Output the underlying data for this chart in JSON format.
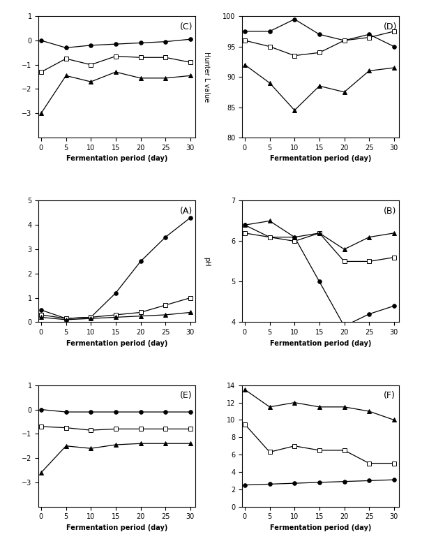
{
  "x": [
    0,
    5,
    10,
    15,
    20,
    25,
    30
  ],
  "panel_C": {
    "label": "(C)",
    "ylabel_right": "Hunter L value",
    "ylim": [
      -4,
      1
    ],
    "yticks": [
      -3,
      -2,
      -1,
      0,
      1
    ],
    "control": [
      0.0,
      -0.3,
      -0.2,
      -0.15,
      -0.1,
      -0.05,
      0.05
    ],
    "gt075": [
      -1.3,
      -0.75,
      -1.0,
      -0.65,
      -0.7,
      -0.7,
      -0.9
    ],
    "gt150": [
      -3.0,
      -1.45,
      -1.7,
      -1.3,
      -1.55,
      -1.55,
      -1.45
    ]
  },
  "panel_D": {
    "label": "(D)",
    "ylabel_right": "",
    "ylim": [
      80,
      100
    ],
    "yticks": [
      80,
      85,
      90,
      95,
      100
    ],
    "control": [
      97.5,
      97.5,
      99.5,
      97.0,
      96.0,
      97.0,
      95.0
    ],
    "gt075": [
      96.0,
      95.0,
      93.5,
      94.0,
      96.0,
      96.5,
      97.5
    ],
    "gt150": [
      92.0,
      89.0,
      84.5,
      88.5,
      87.5,
      91.0,
      91.5
    ]
  },
  "panel_A": {
    "label": "(A)",
    "ylabel_right": "pH",
    "ylim": [
      0,
      5
    ],
    "yticks": [
      0,
      1,
      2,
      3,
      4,
      5
    ],
    "control": [
      0.5,
      0.15,
      0.2,
      1.2,
      2.5,
      3.5,
      4.3
    ],
    "gt075": [
      0.3,
      0.15,
      0.2,
      0.3,
      0.4,
      0.7,
      1.0
    ],
    "gt150": [
      0.2,
      0.1,
      0.15,
      0.2,
      0.25,
      0.3,
      0.4
    ]
  },
  "panel_B": {
    "label": "(B)",
    "ylabel_right": "",
    "ylim": [
      4,
      7
    ],
    "yticks": [
      4,
      5,
      6,
      7
    ],
    "control": [
      6.4,
      6.1,
      6.1,
      5.0,
      3.9,
      4.2,
      4.4
    ],
    "gt075": [
      6.2,
      6.1,
      6.0,
      6.2,
      5.5,
      5.5,
      5.6
    ],
    "gt150": [
      6.4,
      6.5,
      6.1,
      6.2,
      5.8,
      6.1,
      6.2
    ]
  },
  "panel_E": {
    "label": "(E)",
    "ylabel_right": "",
    "ylim": [
      -4,
      1
    ],
    "yticks": [
      -3,
      -2,
      -1,
      0,
      1
    ],
    "control": [
      0.0,
      -0.1,
      -0.1,
      -0.1,
      -0.1,
      -0.1,
      -0.1
    ],
    "gt075": [
      -0.7,
      -0.75,
      -0.85,
      -0.8,
      -0.8,
      -0.8,
      -0.8
    ],
    "gt150": [
      -2.6,
      -1.5,
      -1.6,
      -1.45,
      -1.4,
      -1.4,
      -1.4
    ]
  },
  "panel_F": {
    "label": "(F)",
    "ylabel_right": "",
    "ylim": [
      0,
      14
    ],
    "yticks": [
      0,
      2,
      4,
      6,
      8,
      10,
      12,
      14
    ],
    "control": [
      2.5,
      2.6,
      2.7,
      2.8,
      2.9,
      3.0,
      3.1
    ],
    "gt075": [
      9.5,
      6.3,
      7.0,
      6.5,
      6.5,
      5.0,
      5.0
    ],
    "gt150": [
      13.5,
      11.5,
      12.0,
      11.5,
      11.5,
      11.0,
      10.0
    ]
  },
  "xlabel": "Fermentation period (day)",
  "xticks": [
    0,
    5,
    10,
    15,
    20,
    25,
    30
  ],
  "xlim": [
    -0.5,
    31
  ]
}
